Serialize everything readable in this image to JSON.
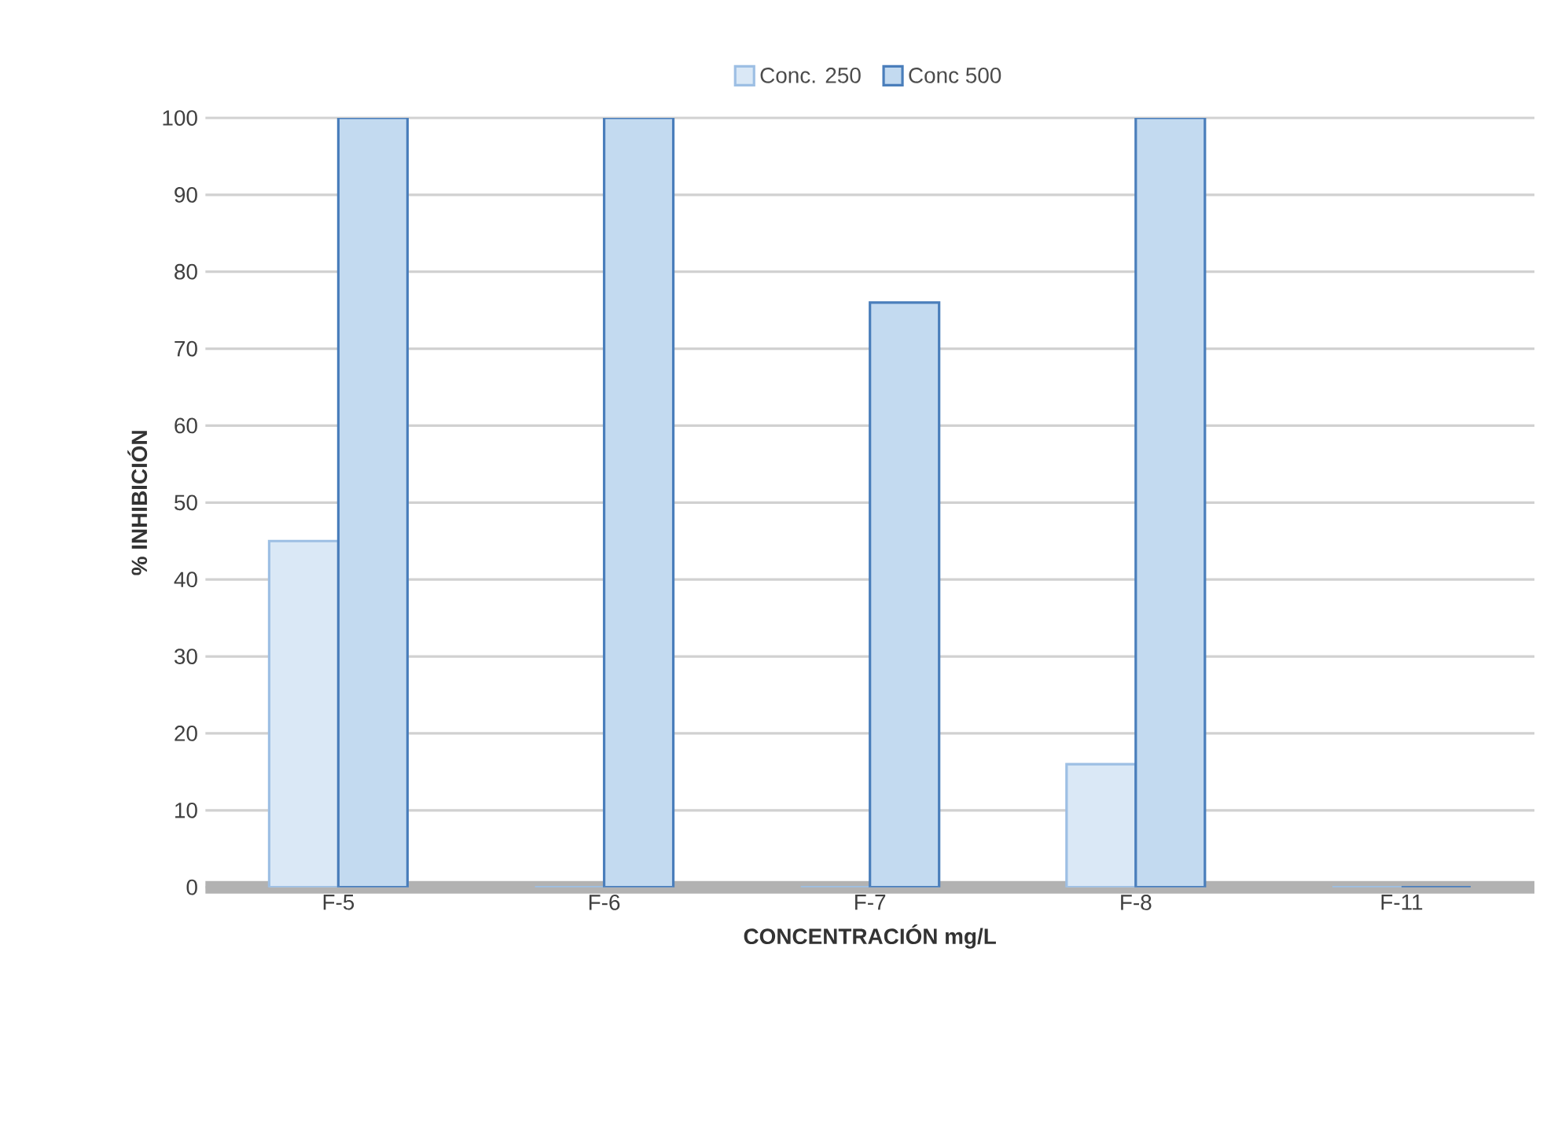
{
  "chart_data": {
    "type": "bar",
    "categories": [
      "F-5",
      "F-6",
      "F-7",
      "F-8",
      "F-11"
    ],
    "xlabel": "CONCENTRACIÓN mg/L",
    "ylabel": "% INHIBICIÓN",
    "series": [
      {
        "name": "Conc. 250",
        "color": "#dae8f6",
        "values": [
          45,
          0,
          0,
          16,
          0
        ]
      },
      {
        "name": "Conc 500",
        "color": "#c3daf0",
        "values": [
          100,
          100,
          76,
          100,
          0
        ]
      }
    ],
    "ylim": [
      0,
      100
    ],
    "yticks": [
      0,
      10,
      20,
      30,
      40,
      50,
      60,
      70,
      80,
      90,
      100
    ],
    "grid": "y",
    "legend": "top"
  }
}
